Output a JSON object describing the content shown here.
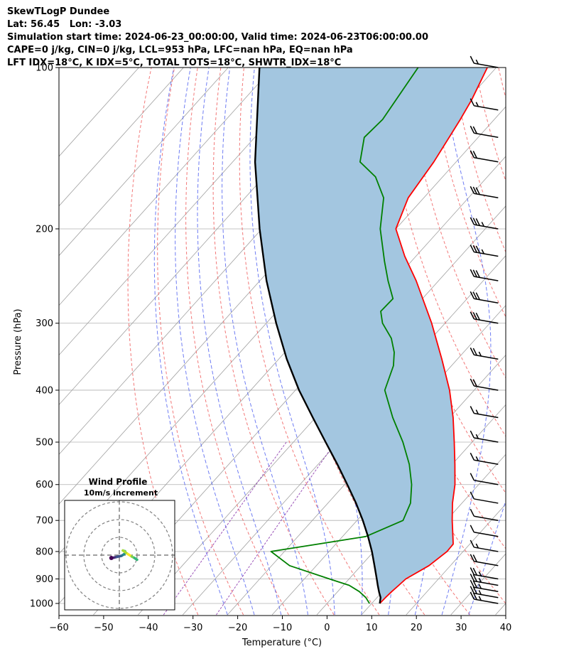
{
  "header": {
    "line1": "SkewTLogP Dundee",
    "line2": "Lat: 56.45   Lon: -3.03",
    "line3": "Simulation start time: 2024-06-23_00:00:00, Valid time: 2024-06-23T06:00:00.00",
    "line4": "CAPE=0 j/kg, CIN=0 j/kg, LCL=953 hPa, LFC=nan hPa, EQ=nan hPa",
    "line5": "LFT IDX=18°C, K IDX=5°C, TOTAL TOTS=18°C, SHWTR_IDX=18°C"
  },
  "chart_data": {
    "type": "line",
    "subtype": "skew-t log-p",
    "xlabel": "Temperature (°C)",
    "ylabel": "Pressure (hPa)",
    "xlim": [
      -60,
      40
    ],
    "ylim": [
      1050,
      100
    ],
    "x_ticks": [
      -60,
      -50,
      -40,
      -30,
      -20,
      -10,
      0,
      10,
      20,
      30,
      40
    ],
    "x_tick_labels": [
      "−60",
      "−50",
      "−40",
      "−30",
      "−20",
      "−10",
      "0",
      "10",
      "20",
      "30",
      "40"
    ],
    "y_ticks": [
      1000,
      900,
      800,
      700,
      600,
      500,
      400,
      300,
      200,
      100
    ],
    "y_tick_labels": [
      "1000",
      "900",
      "800",
      "700",
      "600",
      "500",
      "400",
      "300",
      "200",
      "100"
    ],
    "grid": true,
    "series": [
      {
        "role": "temperature",
        "color": "#ff0000",
        "p": [
          1000,
          975,
          950,
          925,
          900,
          850,
          800,
          775,
          750,
          700,
          650,
          600,
          550,
          500,
          450,
          400,
          350,
          300,
          250,
          225,
          200,
          175,
          150,
          135,
          125,
          115,
          100
        ],
        "t": [
          11.8,
          11.9,
          12.1,
          12.4,
          12.7,
          15.2,
          16.4,
          16.3,
          14.7,
          11.3,
          7.9,
          4.7,
          0.6,
          -4.0,
          -9.2,
          -15.5,
          -23.5,
          -33.0,
          -45.0,
          -52.5,
          -60.0,
          -63.5,
          -65.0,
          -66.5,
          -67.6,
          -69.0,
          -72.0
        ]
      },
      {
        "role": "dewpoint",
        "color": "#008000",
        "p": [
          1000,
          975,
          950,
          925,
          900,
          850,
          800,
          775,
          750,
          700,
          650,
          600,
          550,
          500,
          450,
          400,
          360,
          340,
          320,
          300,
          285,
          270,
          250,
          230,
          200,
          175,
          160,
          150,
          135,
          125,
          100
        ],
        "t": [
          9.5,
          7.5,
          4.8,
          1.3,
          -4.4,
          -16.0,
          -23.0,
          -14.0,
          -4.8,
          0.3,
          -1.5,
          -5.0,
          -9.6,
          -15.5,
          -22.7,
          -30.0,
          -33.0,
          -35.5,
          -39.0,
          -44.0,
          -46.8,
          -46.6,
          -51.3,
          -56.0,
          -63.5,
          -69.0,
          -75.0,
          -81.5,
          -85.5,
          -85.0,
          -87.5
        ]
      },
      {
        "role": "parcel",
        "color": "#000000",
        "p": [
          1000,
          975,
          953,
          925,
          900,
          850,
          800,
          750,
          700,
          650,
          600,
          550,
          500,
          450,
          400,
          350,
          300,
          250,
          200,
          150,
          100
        ],
        "t": [
          11.8,
          10.8,
          9.4,
          7.7,
          6.2,
          3.0,
          -0.4,
          -4.3,
          -8.7,
          -13.7,
          -19.4,
          -25.7,
          -32.8,
          -40.6,
          -49.2,
          -58.2,
          -67.8,
          -78.5,
          -90.5,
          -105.0,
          -123.0
        ]
      }
    ],
    "wind_barbs": {
      "color": "#000000",
      "x_position_degC": 38.3,
      "levels": [
        {
          "p": 1000,
          "speed_kt": 25
        },
        {
          "p": 975,
          "speed_kt": 25
        },
        {
          "p": 950,
          "speed_kt": 25
        },
        {
          "p": 925,
          "speed_kt": 25
        },
        {
          "p": 900,
          "speed_kt": 25
        },
        {
          "p": 850,
          "speed_kt": 20
        },
        {
          "p": 800,
          "speed_kt": 15
        },
        {
          "p": 750,
          "speed_kt": 10
        },
        {
          "p": 700,
          "speed_kt": 10
        },
        {
          "p": 650,
          "speed_kt": 10
        },
        {
          "p": 600,
          "speed_kt": 10
        },
        {
          "p": 550,
          "speed_kt": 15
        },
        {
          "p": 500,
          "speed_kt": 15
        },
        {
          "p": 450,
          "speed_kt": 15
        },
        {
          "p": 400,
          "speed_kt": 20
        },
        {
          "p": 350,
          "speed_kt": 25
        },
        {
          "p": 300,
          "speed_kt": 30
        },
        {
          "p": 275,
          "speed_kt": 30
        },
        {
          "p": 250,
          "speed_kt": 30
        },
        {
          "p": 225,
          "speed_kt": 35
        },
        {
          "p": 200,
          "speed_kt": 35
        },
        {
          "p": 175,
          "speed_kt": 30
        },
        {
          "p": 150,
          "speed_kt": 20
        },
        {
          "p": 135,
          "speed_kt": 20
        },
        {
          "p": 120,
          "speed_kt": 15
        },
        {
          "p": 100,
          "speed_kt": 15
        }
      ]
    },
    "fill": {
      "between": [
        "temperature",
        "parcel"
      ],
      "color": "#a3c6e0"
    },
    "reference_lines": {
      "isotherm_color": "#a0a0a0",
      "dry_adiabat_color": "#f06060",
      "moist_adiabat_color": "#4b5cf0",
      "mixing_ratio_color": "#9040b0"
    }
  },
  "hodograph": {
    "title": "Wind Profile",
    "subtitle": "10m/s increment",
    "rings": 3,
    "points": [
      [
        -4.5,
        -1.6
      ],
      [
        -3.5,
        -1.5
      ],
      [
        -1.5,
        -1.0
      ],
      [
        1.2,
        -0.4
      ],
      [
        2.5,
        0.4
      ],
      [
        3.5,
        1.3
      ],
      [
        3.2,
        2.2
      ],
      [
        2.0,
        2.6
      ],
      [
        4.8,
        0.6
      ],
      [
        7.0,
        -0.8
      ],
      [
        8.5,
        -1.6
      ],
      [
        10.0,
        -2.6
      ]
    ]
  }
}
